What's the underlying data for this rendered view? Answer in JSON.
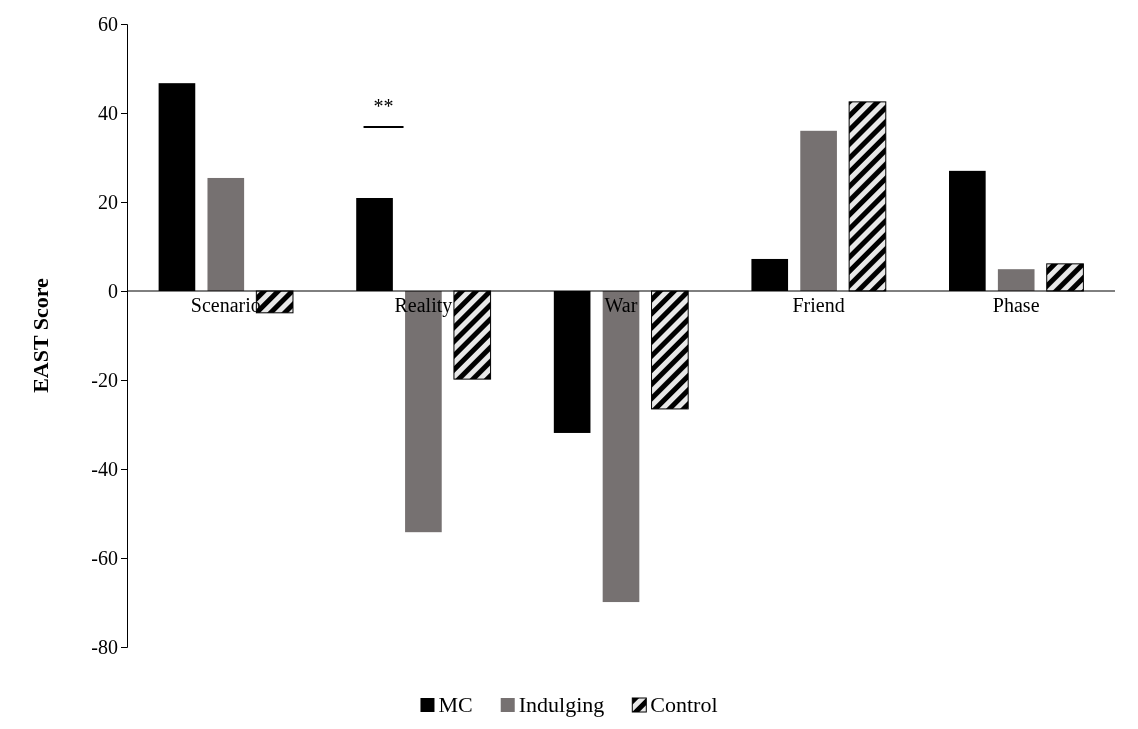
{
  "chart_data": {
    "type": "bar",
    "ylabel": "EAST Score",
    "categories": [
      "Scenario",
      "Reality",
      "War",
      "Friend",
      "Phase"
    ],
    "series": [
      {
        "name": "MC",
        "color": "#000000",
        "values": [
          46.7,
          20.9,
          -31.9,
          7.2,
          27
        ]
      },
      {
        "name": "Indulging",
        "color": "#767171",
        "values": [
          25.4,
          -54.2,
          -69.9,
          36,
          4.9
        ]
      },
      {
        "name": "Control",
        "color": "#000000",
        "values": [
          -4.9,
          -19.8,
          -26.5,
          42.5,
          6.1
        ]
      }
    ],
    "ylim": [
      -80,
      60
    ],
    "yticks": [
      -80,
      -60,
      -40,
      -20,
      0,
      20,
      40,
      60
    ],
    "grid": false,
    "legend": "bottom",
    "annotations": [
      "**"
    ]
  }
}
